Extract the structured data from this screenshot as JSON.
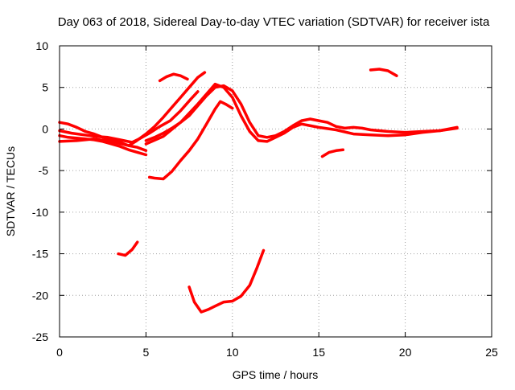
{
  "chart_data": {
    "type": "line",
    "title": "Day 063 of 2018, Sidereal Day-to-day VTEC variation (SDTVAR) for receiver ista",
    "xlabel": "GPS time / hours",
    "ylabel": "SDTVAR / TECUs",
    "xlim": [
      0,
      25
    ],
    "ylim": [
      -25,
      10
    ],
    "xticks": [
      0,
      5,
      10,
      15,
      20,
      25
    ],
    "yticks": [
      -25,
      -20,
      -15,
      -10,
      -5,
      0,
      5,
      10
    ],
    "grid": true,
    "line_color": "#ff0000",
    "series": [
      {
        "name": "trace-a",
        "x": [
          0,
          0.5,
          1,
          1.5,
          2,
          2.5,
          3,
          3.5,
          4,
          4.5,
          5
        ],
        "y": [
          0.8,
          0.6,
          0.2,
          -0.3,
          -0.6,
          -1.0,
          -1.3,
          -1.6,
          -2.0,
          -2.2,
          -2.6
        ]
      },
      {
        "name": "trace-b",
        "x": [
          0,
          0.5,
          1,
          1.5,
          2,
          2.5,
          3,
          3.5,
          4,
          4.5,
          5
        ],
        "y": [
          -0.8,
          -1.0,
          -1.1,
          -1.2,
          -1.3,
          -1.5,
          -1.8,
          -2.1,
          -2.5,
          -2.8,
          -3.1
        ]
      },
      {
        "name": "trace-c",
        "x": [
          0,
          0.7,
          1.4,
          2.1,
          2.8,
          3.5,
          4.2,
          4.6,
          5.2,
          5.8,
          6.4,
          7.0,
          7.6,
          8.0
        ],
        "y": [
          -0.2,
          -0.5,
          -0.7,
          -0.9,
          -1.0,
          -1.3,
          -1.6,
          -1.2,
          -0.5,
          0.3,
          1.0,
          2.2,
          3.6,
          4.5
        ]
      },
      {
        "name": "trace-d",
        "x": [
          0,
          1,
          2,
          3,
          4,
          4.4,
          5,
          5.5,
          6,
          6.5,
          7,
          7.5,
          8.0,
          8.4
        ],
        "y": [
          -1.5,
          -1.4,
          -1.2,
          -1.5,
          -2.0,
          -1.5,
          -0.6,
          0.3,
          1.4,
          2.6,
          3.8,
          5.0,
          6.2,
          6.8
        ]
      },
      {
        "name": "trace-e",
        "x": [
          5.0,
          5.5,
          6.0,
          6.5,
          7.0,
          7.5,
          8.0,
          8.5,
          9.0,
          9.5,
          10.0,
          10.5,
          11.0,
          11.5,
          12.0,
          12.5,
          13.0,
          13.5,
          14.0,
          14.5,
          15.0,
          15.5,
          16.0,
          16.5,
          17.0,
          17.5,
          18.0,
          19.0,
          20.0,
          21.0,
          22.0,
          23.0
        ],
        "y": [
          -1.4,
          -1.0,
          -0.5,
          0.1,
          0.8,
          1.6,
          2.8,
          4.0,
          5.0,
          5.2,
          4.6,
          3.0,
          0.8,
          -0.8,
          -1.0,
          -0.8,
          -0.3,
          0.4,
          1.0,
          1.2,
          1.0,
          0.8,
          0.3,
          0.1,
          0.2,
          0.1,
          -0.1,
          -0.3,
          -0.4,
          -0.3,
          -0.2,
          0.2
        ]
      },
      {
        "name": "trace-f",
        "x": [
          5.0,
          6.0,
          7.0,
          8.0,
          8.5,
          9.0,
          9.5,
          10.0,
          10.5,
          11.0,
          11.5,
          12.0,
          12.5,
          13.0,
          13.5,
          14.0,
          15.0,
          16.0,
          17.0,
          18.0,
          19.0,
          20.0,
          21.0,
          22.0,
          23.0
        ],
        "y": [
          -1.8,
          -0.9,
          0.8,
          3.0,
          4.2,
          5.4,
          5.0,
          3.8,
          1.6,
          -0.3,
          -1.4,
          -1.5,
          -1.0,
          -0.5,
          0.2,
          0.6,
          0.2,
          -0.1,
          -0.6,
          -0.7,
          -0.8,
          -0.7,
          -0.4,
          -0.2,
          0.1
        ]
      },
      {
        "name": "trace-g",
        "x": [
          5.2,
          5.5,
          6.0,
          6.5,
          7.0,
          7.5,
          8.0,
          8.5,
          9.0,
          9.3,
          9.6,
          10.0
        ],
        "y": [
          -5.8,
          -5.9,
          -6.0,
          -5.1,
          -3.8,
          -2.6,
          -1.2,
          0.6,
          2.4,
          3.3,
          3.0,
          2.5
        ]
      },
      {
        "name": "trace-h",
        "x": [
          5.8,
          6.2,
          6.6,
          7.0,
          7.4
        ],
        "y": [
          5.8,
          6.3,
          6.6,
          6.4,
          6.0
        ]
      },
      {
        "name": "trace-i",
        "x": [
          3.4,
          3.8,
          4.2,
          4.5
        ],
        "y": [
          -15.0,
          -15.2,
          -14.5,
          -13.6
        ]
      },
      {
        "name": "trace-j",
        "x": [
          7.5,
          7.8,
          8.2,
          8.6,
          9.0,
          9.5,
          10.0,
          10.5,
          11.0,
          11.4,
          11.8
        ],
        "y": [
          -19.0,
          -20.8,
          -22.0,
          -21.7,
          -21.3,
          -20.8,
          -20.7,
          -20.1,
          -18.8,
          -16.8,
          -14.6
        ]
      },
      {
        "name": "trace-k",
        "x": [
          18.0,
          18.5,
          19.0,
          19.5
        ],
        "y": [
          7.1,
          7.2,
          7.0,
          6.4
        ]
      },
      {
        "name": "trace-l",
        "x": [
          15.2,
          15.6,
          16.0,
          16.4
        ],
        "y": [
          -3.3,
          -2.8,
          -2.6,
          -2.5
        ]
      }
    ]
  }
}
